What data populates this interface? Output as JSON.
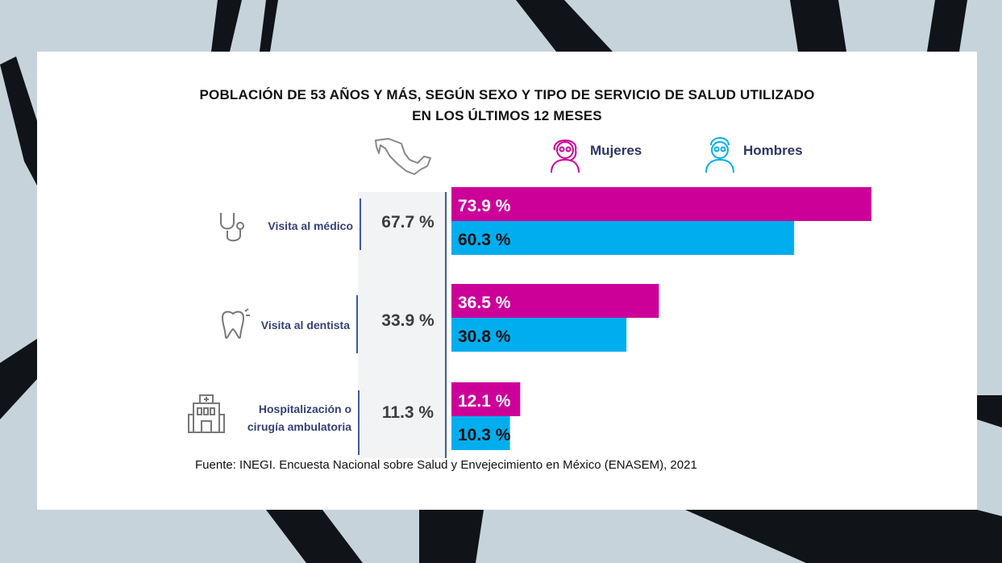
{
  "chart_data": {
    "type": "bar",
    "orientation": "horizontal",
    "title_line1": "Población de 53 años y más, según sexo y tipo de servicio de salud utilizado",
    "title_line2": "en los últimos 12 meses",
    "categories": [
      "Visita al médico",
      "Visita al dentista",
      "Hospitalización o cirugía ambulatoria"
    ],
    "category_lines": [
      [
        "Visita al médico"
      ],
      [
        "Visita al dentista"
      ],
      [
        "Hospitalización o",
        "cirugía ambulatoria"
      ]
    ],
    "national": {
      "values": [
        67.7,
        33.9,
        11.3
      ],
      "labels": [
        "67.7 %",
        "33.9 %",
        "11.3 %"
      ]
    },
    "series": [
      {
        "name": "Mujeres",
        "color": "#cc0099",
        "values": [
          73.9,
          36.5,
          12.1
        ],
        "labels": [
          "73.9 %",
          "36.5 %",
          "12.1 %"
        ]
      },
      {
        "name": "Hombres",
        "color": "#00aeef",
        "values": [
          60.3,
          30.8,
          10.3
        ],
        "labels": [
          "60.3 %",
          "30.8 %",
          "10.3 %"
        ]
      }
    ],
    "xlim": [
      0,
      80
    ],
    "legend": "top"
  },
  "icons": {
    "mexico_map": "mexico-map-icon",
    "mujeres": "woman-avatar-icon",
    "hombres": "man-avatar-icon",
    "categories": [
      "stethoscope-icon",
      "tooth-icon",
      "hospital-icon"
    ]
  },
  "source": "Fuente: INEGI. Encuesta Nacional sobre Salud y Envejecimiento en México (ENASEM), 2021"
}
